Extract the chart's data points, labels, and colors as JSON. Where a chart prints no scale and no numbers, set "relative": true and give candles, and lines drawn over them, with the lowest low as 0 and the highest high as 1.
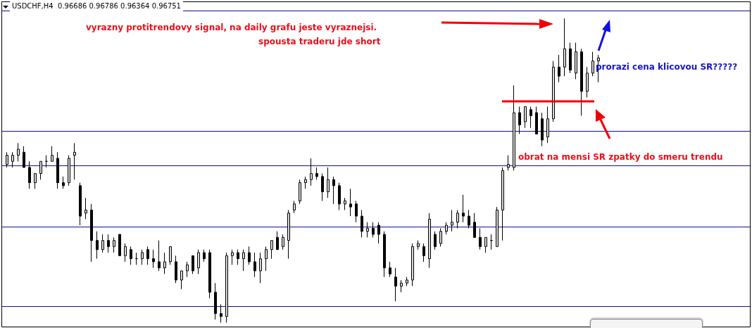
{
  "chart_data": {
    "type": "candlestick",
    "title": "USDCHF,H4  0.96686 0.96786 0.96364 0.96751",
    "relative": true,
    "grid": false,
    "annotations": [
      "vyrazny protitrendovy signal, na daily grafu jeste vyraznejsi.",
      "spousta traderu jde short",
      "prorazi cena klicovou SR?????",
      "obrat na mensi SR zpatky do smeru trendu"
    ],
    "categories": [
      null,
      null,
      null,
      null,
      null,
      null,
      null,
      null,
      null,
      null,
      null,
      null,
      null,
      null,
      null,
      null,
      null,
      null,
      null,
      null,
      null,
      null,
      null,
      null,
      null,
      null,
      null,
      null,
      null,
      null,
      null,
      null,
      null,
      null,
      null,
      null,
      null,
      null,
      null,
      null,
      null,
      null,
      null,
      null,
      null,
      null,
      null,
      null,
      null,
      null,
      null,
      null,
      null,
      null,
      null,
      null,
      null,
      null,
      null,
      null,
      null,
      null,
      null,
      null,
      null,
      null,
      null,
      null,
      null,
      null,
      null,
      null,
      null,
      null,
      null,
      null,
      null,
      null,
      null,
      null,
      null,
      null,
      null,
      null,
      null,
      null,
      null,
      null,
      null,
      null,
      null,
      null,
      null,
      null,
      null,
      null,
      null,
      null,
      null,
      null,
      null,
      null,
      null,
      null,
      null,
      null
    ],
    "ohlc": [
      [
        0.52,
        0.56,
        0.51,
        0.55
      ],
      [
        0.53,
        0.56,
        0.51,
        0.55
      ],
      [
        0.55,
        0.59,
        0.53,
        0.57
      ],
      [
        0.56,
        0.58,
        0.51,
        0.51
      ],
      [
        0.51,
        0.53,
        0.44,
        0.46
      ],
      [
        0.46,
        0.49,
        0.44,
        0.49
      ],
      [
        0.49,
        0.53,
        0.47,
        0.53
      ],
      [
        0.53,
        0.55,
        0.51,
        0.53
      ],
      [
        0.53,
        0.58,
        0.53,
        0.55
      ],
      [
        0.54,
        0.56,
        0.44,
        0.46
      ],
      [
        0.46,
        0.48,
        0.44,
        0.45
      ],
      [
        0.46,
        0.55,
        0.45,
        0.54
      ],
      [
        0.55,
        0.59,
        0.47,
        0.56
      ],
      [
        0.45,
        0.46,
        0.32,
        0.35
      ],
      [
        0.36,
        0.41,
        0.34,
        0.37
      ],
      [
        0.37,
        0.39,
        0.2,
        0.27
      ],
      [
        0.27,
        0.3,
        0.21,
        0.24
      ],
      [
        0.24,
        0.29,
        0.23,
        0.27
      ],
      [
        0.27,
        0.29,
        0.23,
        0.25
      ],
      [
        0.25,
        0.28,
        0.23,
        0.27
      ],
      [
        0.29,
        0.29,
        0.22,
        0.22
      ],
      [
        0.22,
        0.26,
        0.2,
        0.25
      ],
      [
        0.24,
        0.25,
        0.19,
        0.21
      ],
      [
        0.21,
        0.23,
        0.19,
        0.21
      ],
      [
        0.21,
        0.24,
        0.19,
        0.23
      ],
      [
        0.24,
        0.25,
        0.19,
        0.21
      ],
      [
        0.21,
        0.24,
        0.18,
        0.2
      ],
      [
        0.2,
        0.27,
        0.17,
        0.18
      ],
      [
        0.18,
        0.23,
        0.16,
        0.2
      ],
      [
        0.2,
        0.25,
        0.19,
        0.25
      ],
      [
        0.2,
        0.22,
        0.13,
        0.14
      ],
      [
        0.14,
        0.17,
        0.11,
        0.17
      ],
      [
        0.17,
        0.2,
        0.15,
        0.19
      ],
      [
        0.22,
        0.22,
        0.16,
        0.17
      ],
      [
        0.18,
        0.24,
        0.16,
        0.23
      ],
      [
        0.23,
        0.24,
        0.2,
        0.21
      ],
      [
        0.23,
        0.24,
        0.08,
        0.1
      ],
      [
        0.1,
        0.13,
        0.01,
        0.03
      ],
      [
        0.03,
        0.06,
        0.0,
        0.02
      ],
      [
        0.02,
        0.23,
        0.0,
        0.22
      ],
      [
        0.22,
        0.24,
        0.19,
        0.23
      ],
      [
        0.23,
        0.24,
        0.19,
        0.21
      ],
      [
        0.21,
        0.24,
        0.17,
        0.23
      ],
      [
        0.23,
        0.25,
        0.19,
        0.2
      ],
      [
        0.2,
        0.23,
        0.15,
        0.17
      ],
      [
        0.17,
        0.23,
        0.13,
        0.21
      ],
      [
        0.21,
        0.25,
        0.17,
        0.24
      ],
      [
        0.24,
        0.27,
        0.21,
        0.27
      ],
      [
        0.28,
        0.3,
        0.24,
        0.24
      ],
      [
        0.25,
        0.29,
        0.24,
        0.28
      ],
      [
        0.27,
        0.37,
        0.21,
        0.36
      ],
      [
        0.37,
        0.4,
        0.36,
        0.39
      ],
      [
        0.4,
        0.47,
        0.39,
        0.46
      ],
      [
        0.46,
        0.48,
        0.44,
        0.47
      ],
      [
        0.47,
        0.54,
        0.45,
        0.49
      ],
      [
        0.49,
        0.51,
        0.47,
        0.48
      ],
      [
        0.48,
        0.49,
        0.4,
        0.43
      ],
      [
        0.43,
        0.51,
        0.41,
        0.47
      ],
      [
        0.47,
        0.48,
        0.39,
        0.45
      ],
      [
        0.45,
        0.46,
        0.37,
        0.39
      ],
      [
        0.39,
        0.41,
        0.37,
        0.4
      ],
      [
        0.39,
        0.44,
        0.35,
        0.38
      ],
      [
        0.39,
        0.4,
        0.33,
        0.35
      ],
      [
        0.35,
        0.37,
        0.28,
        0.3
      ],
      [
        0.3,
        0.33,
        0.28,
        0.31
      ],
      [
        0.31,
        0.33,
        0.28,
        0.29
      ],
      [
        0.32,
        0.33,
        0.26,
        0.29
      ],
      [
        0.29,
        0.3,
        0.15,
        0.18
      ],
      [
        0.18,
        0.2,
        0.15,
        0.16
      ],
      [
        0.15,
        0.18,
        0.07,
        0.12
      ],
      [
        0.12,
        0.14,
        0.1,
        0.13
      ],
      [
        0.13,
        0.15,
        0.12,
        0.14
      ],
      [
        0.14,
        0.26,
        0.12,
        0.25
      ],
      [
        0.25,
        0.27,
        0.24,
        0.26
      ],
      [
        0.25,
        0.26,
        0.2,
        0.22
      ],
      [
        0.21,
        0.36,
        0.18,
        0.34
      ],
      [
        0.29,
        0.3,
        0.24,
        0.25
      ],
      [
        0.26,
        0.31,
        0.25,
        0.3
      ],
      [
        0.3,
        0.33,
        0.29,
        0.32
      ],
      [
        0.32,
        0.37,
        0.3,
        0.33
      ],
      [
        0.33,
        0.37,
        0.31,
        0.36
      ],
      [
        0.36,
        0.42,
        0.33,
        0.35
      ],
      [
        0.35,
        0.37,
        0.31,
        0.32
      ],
      [
        0.33,
        0.36,
        0.28,
        0.28
      ],
      [
        0.28,
        0.31,
        0.24,
        0.25
      ],
      [
        0.25,
        0.28,
        0.23,
        0.28
      ],
      [
        0.27,
        0.29,
        0.24,
        0.27
      ],
      [
        0.25,
        0.38,
        0.25,
        0.37
      ],
      [
        0.37,
        0.51,
        0.27,
        0.5
      ],
      [
        0.51,
        0.55,
        0.5,
        0.52
      ],
      [
        0.51,
        0.78,
        0.5,
        0.69
      ],
      [
        0.69,
        0.71,
        0.62,
        0.65
      ],
      [
        0.66,
        0.71,
        0.64,
        0.71
      ],
      [
        0.7,
        0.71,
        0.64,
        0.68
      ],
      [
        0.69,
        0.71,
        0.62,
        0.62
      ],
      [
        0.67,
        0.69,
        0.58,
        0.6
      ],
      [
        0.61,
        0.71,
        0.59,
        0.67
      ],
      [
        0.67,
        0.86,
        0.66,
        0.84
      ],
      [
        0.84,
        0.88,
        0.79,
        0.81
      ],
      [
        0.84,
        1.0,
        0.81,
        0.9
      ],
      [
        0.9,
        0.92,
        0.82,
        0.83
      ],
      [
        0.82,
        0.92,
        0.8,
        0.89
      ],
      [
        0.89,
        0.9,
        0.68,
        0.76
      ],
      [
        0.76,
        0.84,
        0.74,
        0.82
      ],
      [
        0.82,
        0.89,
        0.81,
        0.86
      ],
      [
        0.86,
        0.88,
        0.79,
        0.87
      ]
    ],
    "ref_lines": [
      {
        "axis": "y",
        "value": 1.025,
        "color": "#10108c"
      },
      {
        "axis": "y",
        "value": 0.629,
        "color": "#10108c"
      },
      {
        "axis": "y",
        "value": 0.516,
        "color": "#10108c"
      },
      {
        "axis": "y",
        "value": 0.316,
        "color": "#10108c"
      },
      {
        "axis": "y",
        "value": 0.053,
        "color": "#10108c"
      }
    ]
  }
}
